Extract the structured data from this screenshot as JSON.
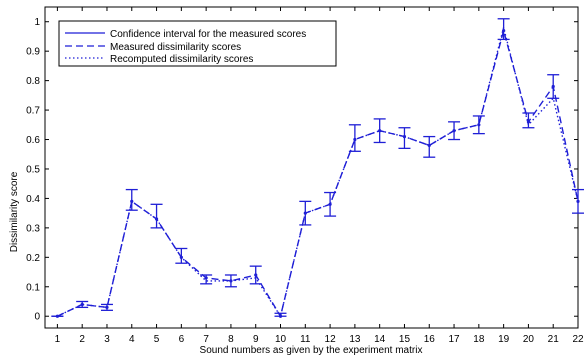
{
  "chart_data": {
    "type": "line",
    "xlabel": "Sound numbers as given by the experiment matrix",
    "ylabel": "Dissimilarity score",
    "x": [
      1,
      2,
      3,
      4,
      5,
      6,
      7,
      8,
      9,
      10,
      11,
      12,
      13,
      14,
      15,
      16,
      17,
      18,
      19,
      20,
      21,
      22
    ],
    "xlim": [
      0.5,
      22
    ],
    "ylim": [
      -0.04,
      1.05
    ],
    "yticks": [
      0,
      0.1,
      0.2,
      0.3,
      0.4,
      0.5,
      0.6,
      0.7,
      0.8,
      0.9,
      1
    ],
    "ytick_labels": [
      "0",
      "0.1",
      "0.2",
      "0.3",
      "0.4",
      "0.5",
      "0.6",
      "0.7",
      "0.8",
      "0.9",
      "1"
    ],
    "xtick_labels": [
      "1",
      "2",
      "3",
      "4",
      "5",
      "6",
      "7",
      "8",
      "9",
      "10",
      "11",
      "12",
      "13",
      "14",
      "15",
      "16",
      "17",
      "18",
      "19",
      "20",
      "21",
      "22"
    ],
    "grid": false,
    "legend_position": "top-left",
    "series": [
      {
        "name": "Confidence interval for the measured scores",
        "style": "errorbar",
        "lower": [
          0,
          0.03,
          0.02,
          0.36,
          0.3,
          0.18,
          0.11,
          0.1,
          0.11,
          0,
          0.31,
          0.34,
          0.56,
          0.59,
          0.57,
          0.54,
          0.6,
          0.62,
          0.94,
          0.64,
          0.74,
          0.35
        ],
        "upper": [
          0,
          0.05,
          0.04,
          0.43,
          0.38,
          0.23,
          0.14,
          0.14,
          0.17,
          0.01,
          0.39,
          0.42,
          0.65,
          0.67,
          0.64,
          0.61,
          0.66,
          0.68,
          1.01,
          0.69,
          0.82,
          0.43
        ]
      },
      {
        "name": "Measured dissimilarity scores",
        "style": "dashed",
        "values": [
          0,
          0.04,
          0.03,
          0.39,
          0.33,
          0.2,
          0.13,
          0.12,
          0.14,
          0,
          0.35,
          0.38,
          0.6,
          0.63,
          0.61,
          0.58,
          0.63,
          0.65,
          0.97,
          0.66,
          0.78,
          0.39
        ]
      },
      {
        "name": "Recomputed dissimilarity scores",
        "style": "dotted",
        "values": [
          0,
          0.04,
          0.03,
          0.39,
          0.33,
          0.2,
          0.12,
          0.12,
          0.13,
          0,
          0.35,
          0.38,
          0.6,
          0.63,
          0.61,
          0.58,
          0.63,
          0.65,
          0.98,
          0.65,
          0.74,
          0.39
        ]
      }
    ],
    "color": "#1f1fd6"
  }
}
